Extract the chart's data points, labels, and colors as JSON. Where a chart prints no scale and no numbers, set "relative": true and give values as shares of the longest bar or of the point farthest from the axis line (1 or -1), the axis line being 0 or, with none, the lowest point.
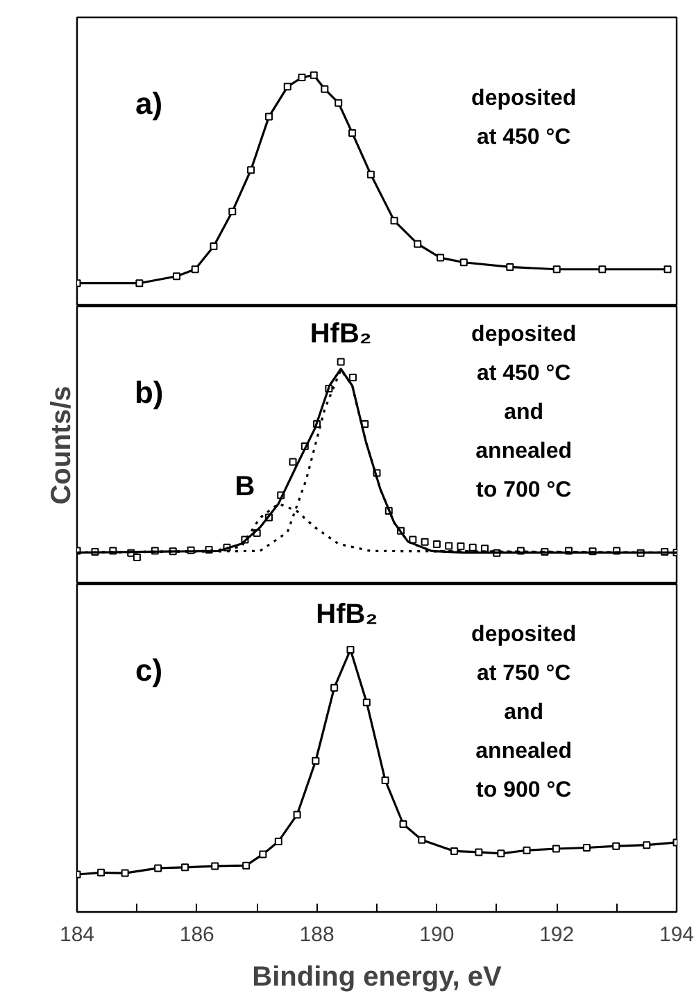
{
  "chart_data": [
    {
      "type": "line",
      "relative": true,
      "xlim": [
        184,
        194
      ],
      "tick_labels": false,
      "marker": "square",
      "annotations": [
        "a)",
        "deposited\nat 450 °C"
      ],
      "series": [
        {
          "color": "#000000",
          "x": [
            184.0,
            185.04,
            185.66,
            185.97,
            186.28,
            186.59,
            186.9,
            187.2,
            187.51,
            187.75,
            187.95,
            188.13,
            188.36,
            188.59,
            188.9,
            189.29,
            189.68,
            190.06,
            190.45,
            191.22,
            192.0,
            192.76,
            193.85
          ],
          "values": [
            0.1,
            0.1,
            0.13,
            0.16,
            0.26,
            0.41,
            0.59,
            0.82,
            0.95,
            0.99,
            1.0,
            0.94,
            0.88,
            0.75,
            0.57,
            0.37,
            0.27,
            0.21,
            0.19,
            0.17,
            0.16,
            0.16,
            0.16
          ]
        }
      ]
    },
    {
      "type": "line",
      "relative": true,
      "xlim": [
        184,
        194
      ],
      "tick_labels": false,
      "ylabel": "Counts/s",
      "annotations": [
        "b)",
        "deposited\nat 450 °C\nand\nannealed\nto 700 °C",
        "HfB₂",
        "B"
      ],
      "series": [
        {
          "type": "scatter",
          "marker": "square",
          "color": "#000000",
          "x": [
            184.0,
            184.3,
            184.6,
            184.9,
            185.0,
            185.3,
            185.6,
            185.9,
            186.2,
            186.5,
            186.8,
            187.0,
            187.2,
            187.4,
            187.6,
            187.8,
            188.0,
            188.2,
            188.4,
            188.6,
            188.8,
            189.0,
            189.2,
            189.4,
            189.6,
            189.8,
            190.0,
            190.2,
            190.4,
            190.6,
            190.8,
            191.0,
            191.4,
            191.8,
            192.2,
            192.6,
            193.0,
            193.4,
            193.8,
            194.0
          ],
          "values": [
            0.15,
            0.145,
            0.15,
            0.14,
            0.12,
            0.15,
            0.148,
            0.152,
            0.155,
            0.165,
            0.2,
            0.23,
            0.3,
            0.4,
            0.55,
            0.62,
            0.72,
            0.88,
            1.0,
            0.93,
            0.72,
            0.5,
            0.33,
            0.24,
            0.2,
            0.19,
            0.18,
            0.172,
            0.17,
            0.165,
            0.16,
            0.14,
            0.15,
            0.145,
            0.15,
            0.148,
            0.15,
            0.14,
            0.145,
            0.142
          ]
        },
        {
          "type": "line",
          "line_style": "solid",
          "color": "#000000",
          "x": [
            184.0,
            186.36,
            186.74,
            187.05,
            187.36,
            187.66,
            187.97,
            188.21,
            188.4,
            188.59,
            188.82,
            189.06,
            189.29,
            189.52,
            189.91,
            190.45,
            194.0
          ],
          "values": [
            0.142,
            0.149,
            0.181,
            0.255,
            0.362,
            0.532,
            0.702,
            0.893,
            0.968,
            0.893,
            0.638,
            0.426,
            0.276,
            0.191,
            0.149,
            0.142,
            0.142
          ]
        },
        {
          "type": "line",
          "line_style": "dotted",
          "color": "#000000",
          "x": [
            184.0,
            186.2,
            186.74,
            187.05,
            187.36,
            187.66,
            187.97,
            188.36,
            188.9,
            194.0
          ],
          "values": [
            0.142,
            0.149,
            0.168,
            0.298,
            0.362,
            0.33,
            0.255,
            0.181,
            0.149,
            0.142
          ]
        },
        {
          "type": "line",
          "line_style": "dotted",
          "color": "#000000",
          "x": [
            184.0,
            187.05,
            187.51,
            187.82,
            188.13,
            188.4,
            188.59,
            188.82,
            189.06,
            189.29,
            189.52,
            189.91,
            194.0
          ],
          "values": [
            0.142,
            0.149,
            0.234,
            0.468,
            0.787,
            0.965,
            0.893,
            0.638,
            0.426,
            0.276,
            0.191,
            0.149,
            0.142
          ]
        }
      ]
    },
    {
      "type": "line",
      "relative": true,
      "marker": "square",
      "xlim": [
        184,
        194
      ],
      "tick_labels": "x",
      "xlabel": "Binding energy, eV",
      "xticks": [
        184,
        {
          "value": 185,
          "label": null
        },
        186,
        {
          "value": 187,
          "label": null
        },
        188,
        {
          "value": 189,
          "label": null
        },
        190,
        {
          "value": 191,
          "label": null
        },
        192,
        {
          "value": 193,
          "label": null
        },
        194
      ],
      "annotations": [
        "c)",
        "deposited\nat 750 °C\nand\nannealed\nto 900 °C",
        "HfB₂"
      ],
      "series": [
        {
          "color": "#000000",
          "x": [
            184.0,
            184.4,
            184.8,
            185.35,
            185.8,
            186.3,
            186.82,
            187.1,
            187.36,
            187.67,
            187.98,
            188.29,
            188.56,
            188.83,
            189.14,
            189.44,
            189.75,
            190.29,
            190.7,
            191.07,
            191.5,
            191.99,
            192.5,
            192.99,
            193.5,
            194.0
          ],
          "values": [
            0.143,
            0.15,
            0.148,
            0.167,
            0.17,
            0.175,
            0.177,
            0.22,
            0.269,
            0.371,
            0.576,
            0.855,
            1.0,
            0.799,
            0.502,
            0.335,
            0.275,
            0.232,
            0.228,
            0.223,
            0.235,
            0.241,
            0.245,
            0.251,
            0.255,
            0.265
          ]
        }
      ]
    }
  ]
}
